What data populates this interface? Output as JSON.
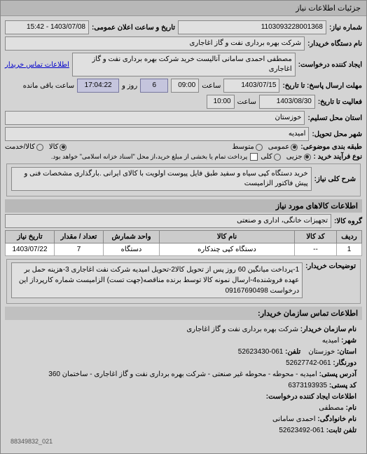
{
  "window_title": "جزئیات اطلاعات نیاز",
  "header": {
    "label_number": "شماره نیاز:",
    "number": "1103093228001368",
    "label_datetime": "تاریخ و ساعت اعلان عمومی:",
    "datetime": "1403/07/08 - 15:42",
    "label_buyer_org": "نام دستگاه خریدار:",
    "buyer_org": "شرکت بهره برداری نفت و گاز اغاجاری",
    "label_requester": "ایجاد کننده درخواست:",
    "requester": "مصطفی احمدی سامانی آنالیست خرید شرکت بهره برداری نفت و گاز اغاجاری",
    "contact_link": "اطلاعات تماس خریدار"
  },
  "deadlines": {
    "label_resp_from": "مهلت ارسال پاسخ: تا تاریخ:",
    "resp_date": "1403/07/15",
    "label_hour": "ساعت",
    "resp_hour": "09:00",
    "remaining_days": "6",
    "label_day_and": "روز و",
    "remaining_time": "17:04:22",
    "label_remaining": "ساعت باقی مانده",
    "label_need_until": "فعالیت تا تاریخ:",
    "need_date": "1403/08/30",
    "need_hour": "10:00",
    "label_province": "استان محل تسلیم:",
    "province": "خوزستان",
    "label_city": "شهر محل تحویل:",
    "city": "امیدیه"
  },
  "subject": {
    "label_subject_type": "طبقه بندی موضوعی:",
    "label_buy_process": "نوع فرآیند خرید :",
    "label_average": "متوسط",
    "label_public": "عمومی",
    "label_partial": "جزیی",
    "label_all": "کلی",
    "label_item": "کالا",
    "label_credit": "کالا/خدمت",
    "credit_note": "پرداخت تمام یا بخشی از مبلغ خرید،از محل \"اسناد خزانه اسلامی\" خواهد بود.",
    "label_desc": "شرح کلی نیاز:",
    "desc": "خرید دستگاه کپی سیاه و سفید طبق فایل پیوست اولویت با کالای ایرانی .بارگذاری مشخصات فنی و پیش فاکتور الزامیست"
  },
  "items_header": "اطلاعات کالاهای مورد نیاز",
  "group": {
    "label": "گروه کالا:",
    "value": "تجهیزات خانگی، اداری و صنعتی"
  },
  "table": {
    "columns": [
      "ردیف",
      "کد کالا",
      "نام کالا",
      "واحد شمارش",
      "تعداد / مقدار",
      "تاریخ نیاز"
    ],
    "rows": [
      [
        "1",
        "--",
        "دستگاه کپی چندکاره",
        "دستگاه",
        "7",
        "1403/07/22"
      ]
    ],
    "col_widths": [
      "36px",
      "60px",
      "auto",
      "80px",
      "70px",
      "70px"
    ]
  },
  "buyer_notes": {
    "label": "توضیحات خریدار:",
    "text": "1-پرداخت میانگین 60 روز پس از تحویل کالا2-تحویل امیدیه شرکت نفت اغاجاری 3-هزینه حمل بر عهده فروشنده4-ارسال نمونه کالا توسط برنده مناقصه(جهت تست) الزامیست شماره کارپرداز این درخواست 09167690498"
  },
  "contact_header": "اطلاعات تماس سازمان خریدار:",
  "contact": {
    "label_org": "نام سازمان خریدار:",
    "org": "شرکت بهره برداری نفت و گاز اغاجاری",
    "label_city": "شهر:",
    "city": "امیدیه",
    "label_province": "استان:",
    "province": "خوزستان",
    "label_tel": "تلفن:",
    "tel": "061-52623430",
    "label_fax": "دورنگار:",
    "fax": "061-52627742",
    "label_addr": "آدرس پستی:",
    "addr": "امیدیه - محوطه - محوطه غیر صنعتی - شرکت بهره برداری نفت و گاز اغاجاری - ساختمان 360",
    "label_postcode": "کد پستی:",
    "postcode": "6373193935",
    "creator_header": "اطلاعات ایجاد کننده درخواست:",
    "label_name": "نام:",
    "name": "مصطفی",
    "label_family": "نام خانوادگی:",
    "family": "احمدی سامانی",
    "label_tel2": "تلفن ثابت:",
    "tel2": "061-52623492",
    "footer_phone": "021_88349832"
  }
}
